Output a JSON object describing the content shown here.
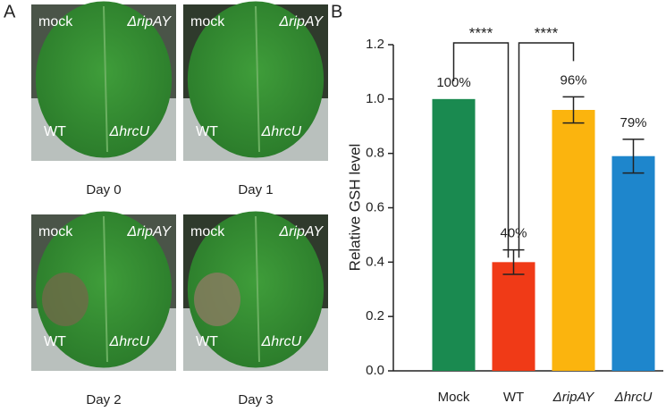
{
  "panel_a": {
    "label": "A",
    "photos": [
      {
        "caption": "Day 0",
        "labels": [
          "mock",
          "ΔripAY",
          "WT",
          "ΔhrcU"
        ]
      },
      {
        "caption": "Day 1",
        "labels": [
          "mock",
          "ΔripAY",
          "WT",
          "ΔhrcU"
        ]
      },
      {
        "caption": "Day 2",
        "labels": [
          "mock",
          "ΔripAY",
          "WT",
          "ΔhrcU"
        ]
      },
      {
        "caption": "Day 3",
        "labels": [
          "mock",
          "ΔripAY",
          "WT",
          "ΔhrcU"
        ]
      }
    ]
  },
  "chart_data": {
    "type": "bar",
    "label": "B",
    "y_label": "Relative GSH level",
    "categories": [
      "Mock",
      "WT",
      "ΔripAY",
      "ΔhrcU"
    ],
    "values": [
      1.0,
      0.4,
      0.96,
      0.79
    ],
    "value_labels": [
      "100%",
      "40%",
      "96%",
      "79%"
    ],
    "errors": [
      null,
      0.045,
      0.048,
      0.062
    ],
    "colors": [
      "#1a8a50",
      "#f03a17",
      "#fbb40e",
      "#1e86cc"
    ],
    "ylim": [
      0,
      1.2
    ],
    "yticks": [
      {
        "value": 0,
        "label": "0.0"
      },
      0.2,
      0.4,
      0.6,
      0.8,
      {
        "value": 1.0,
        "label": "1.0"
      },
      1.2
    ],
    "significance": [
      {
        "label": "****",
        "between": [
          "Mock",
          "WT"
        ]
      },
      {
        "label": "****",
        "between": [
          "WT",
          "ΔripAY"
        ]
      }
    ]
  }
}
